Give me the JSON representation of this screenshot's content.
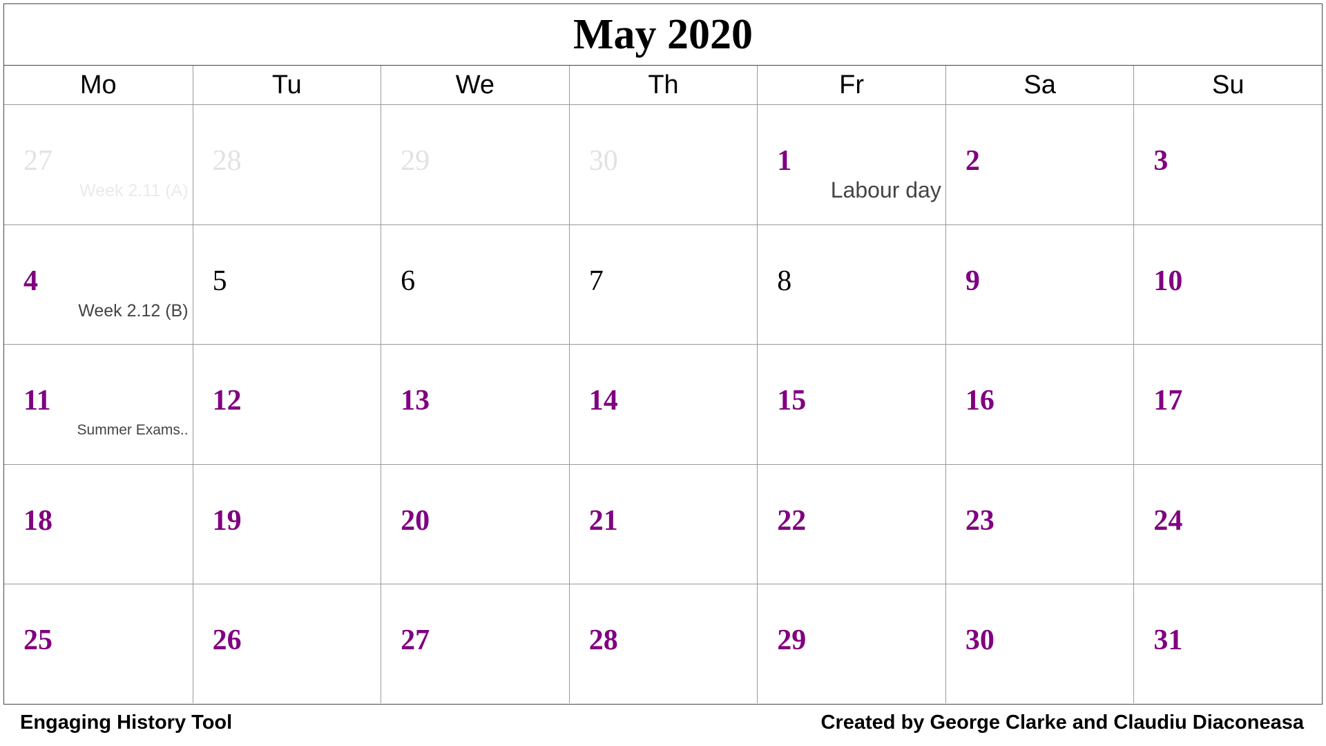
{
  "calendar": {
    "title": "May 2020",
    "weekdays": [
      "Mo",
      "Tu",
      "We",
      "Th",
      "Fr",
      "Sa",
      "Su"
    ],
    "colors": {
      "highlight_day": "#800080",
      "regular_day": "#000000",
      "faded_day": "#e2e2e2",
      "note": "#444444"
    },
    "weeks": [
      [
        {
          "day": "27",
          "style": "faded",
          "note": "Week 2.11 (A)",
          "note_style": "faded"
        },
        {
          "day": "28",
          "style": "faded"
        },
        {
          "day": "29",
          "style": "faded"
        },
        {
          "day": "30",
          "style": "faded"
        },
        {
          "day": "1",
          "style": "purple",
          "note": "Labour day",
          "note_style": "lg"
        },
        {
          "day": "2",
          "style": "purple"
        },
        {
          "day": "3",
          "style": "purple"
        }
      ],
      [
        {
          "day": "4",
          "style": "purple",
          "note": "Week 2.12 (B)",
          "note_style": "md"
        },
        {
          "day": "5",
          "style": "black"
        },
        {
          "day": "6",
          "style": "black"
        },
        {
          "day": "7",
          "style": "black"
        },
        {
          "day": "8",
          "style": "black"
        },
        {
          "day": "9",
          "style": "purple"
        },
        {
          "day": "10",
          "style": "purple"
        }
      ],
      [
        {
          "day": "11",
          "style": "purple",
          "note": "Summer Exams..",
          "note_style": "sm"
        },
        {
          "day": "12",
          "style": "purple"
        },
        {
          "day": "13",
          "style": "purple"
        },
        {
          "day": "14",
          "style": "purple"
        },
        {
          "day": "15",
          "style": "purple"
        },
        {
          "day": "16",
          "style": "purple"
        },
        {
          "day": "17",
          "style": "purple"
        }
      ],
      [
        {
          "day": "18",
          "style": "purple"
        },
        {
          "day": "19",
          "style": "purple"
        },
        {
          "day": "20",
          "style": "purple"
        },
        {
          "day": "21",
          "style": "purple"
        },
        {
          "day": "22",
          "style": "purple"
        },
        {
          "day": "23",
          "style": "purple"
        },
        {
          "day": "24",
          "style": "purple"
        }
      ],
      [
        {
          "day": "25",
          "style": "purple"
        },
        {
          "day": "26",
          "style": "purple"
        },
        {
          "day": "27",
          "style": "purple"
        },
        {
          "day": "28",
          "style": "purple"
        },
        {
          "day": "29",
          "style": "purple"
        },
        {
          "day": "30",
          "style": "purple"
        },
        {
          "day": "31",
          "style": "purple"
        }
      ]
    ]
  },
  "footer": {
    "left_text": "Engaging History Tool",
    "right_text": "Created by George Clarke and Claudiu Diaconeasa"
  }
}
